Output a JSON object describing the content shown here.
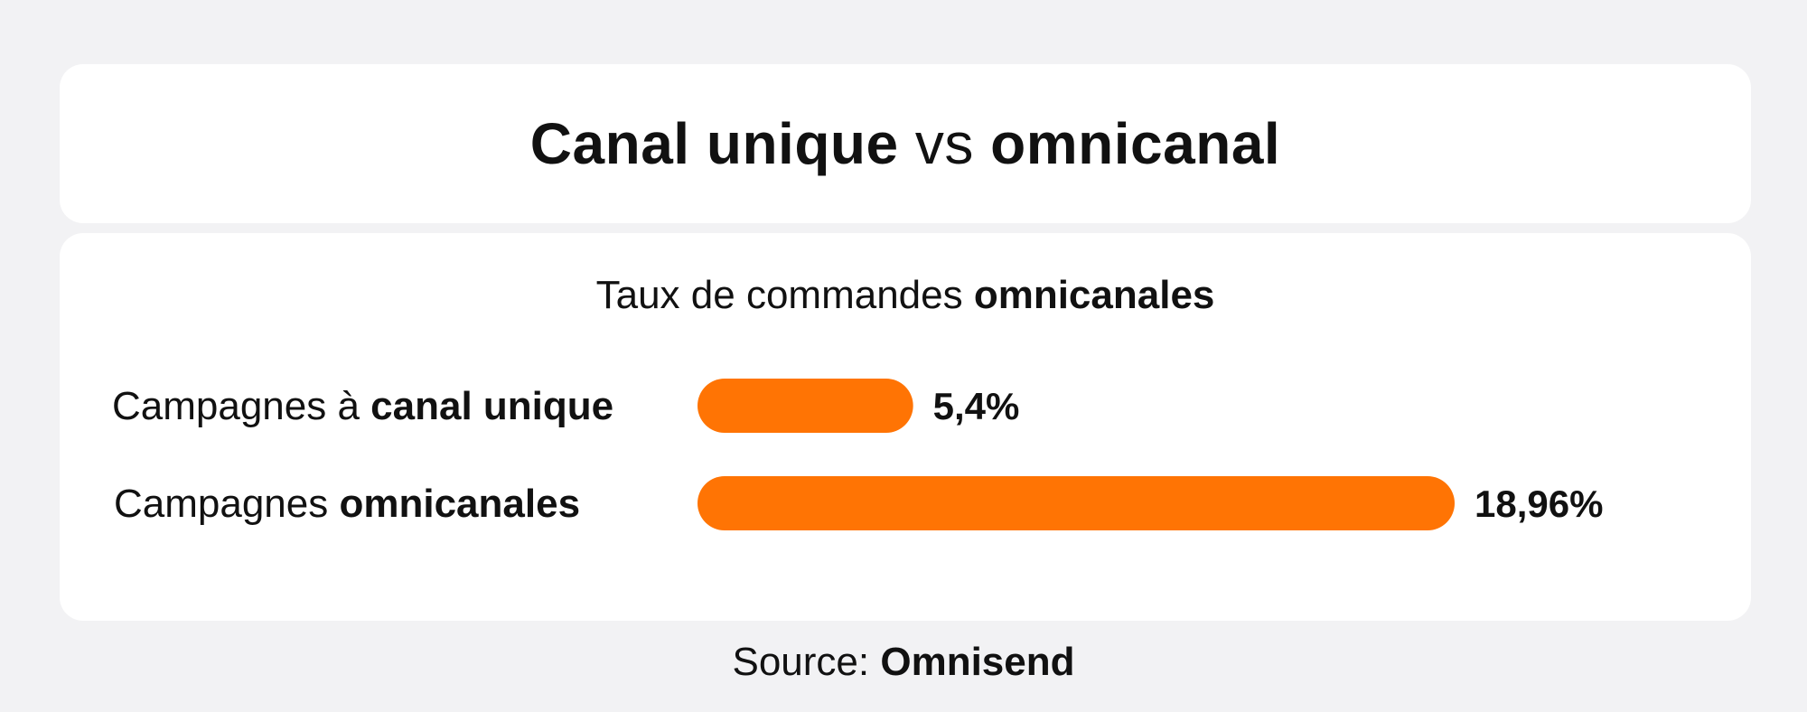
{
  "header": {
    "title_part1": "Canal unique",
    "title_part2": " vs ",
    "title_part3": "omnicanal"
  },
  "chart_data": {
    "type": "bar",
    "orientation": "horizontal",
    "title_regular": "Taux de commandes ",
    "title_bold": "omnicanales",
    "categories": [
      {
        "regular": "Campagnes à ",
        "bold": "canal unique"
      },
      {
        "regular": "Campagnes ",
        "bold": "omnicanales"
      }
    ],
    "values": [
      5.4,
      18.96
    ],
    "value_labels": [
      "5,4%",
      "18,96%"
    ],
    "unit": "%",
    "grid": false,
    "legend": "none"
  },
  "source": {
    "label": "Source: ",
    "name": "Omnisend"
  },
  "colors": {
    "bar": "#ff7404",
    "background": "#f2f2f4",
    "card": "#ffffff",
    "text": "#111111"
  }
}
